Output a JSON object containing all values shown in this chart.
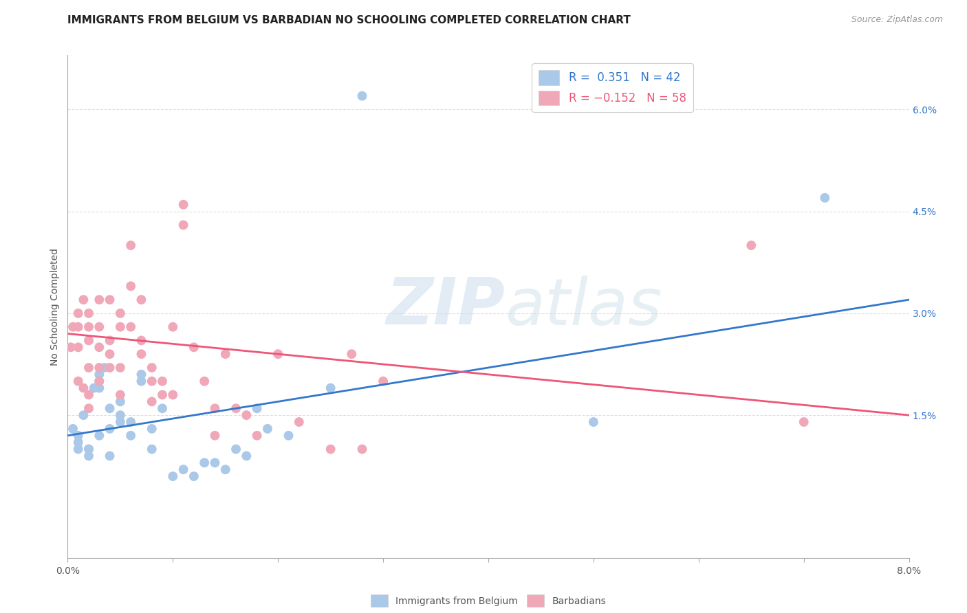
{
  "title": "IMMIGRANTS FROM BELGIUM VS BARBADIAN NO SCHOOLING COMPLETED CORRELATION CHART",
  "source": "Source: ZipAtlas.com",
  "ylabel": "No Schooling Completed",
  "right_yticks": [
    0.015,
    0.03,
    0.045,
    0.06
  ],
  "right_yticklabels": [
    "1.5%",
    "3.0%",
    "4.5%",
    "6.0%"
  ],
  "x_min": 0.0,
  "x_max": 0.08,
  "y_min": -0.006,
  "y_max": 0.068,
  "blue_color": "#aac8e8",
  "pink_color": "#f0a8b8",
  "blue_line_color": "#3377cc",
  "pink_line_color": "#ee5577",
  "legend_blue_label": "R =  0.351   N = 42",
  "legend_pink_label": "R = −0.152   N = 58",
  "bottom_legend_blue": "Immigrants from Belgium",
  "bottom_legend_pink": "Barbadians",
  "watermark_zip": "ZIP",
  "watermark_atlas": "atlas",
  "blue_scatter_x": [
    0.0005,
    0.001,
    0.001,
    0.001,
    0.0015,
    0.002,
    0.002,
    0.002,
    0.0025,
    0.003,
    0.003,
    0.003,
    0.003,
    0.0035,
    0.004,
    0.004,
    0.004,
    0.005,
    0.005,
    0.005,
    0.006,
    0.006,
    0.007,
    0.007,
    0.008,
    0.008,
    0.009,
    0.01,
    0.011,
    0.012,
    0.013,
    0.014,
    0.015,
    0.016,
    0.017,
    0.018,
    0.019,
    0.021,
    0.025,
    0.028,
    0.05,
    0.072
  ],
  "blue_scatter_y": [
    0.013,
    0.011,
    0.012,
    0.01,
    0.015,
    0.01,
    0.009,
    0.01,
    0.019,
    0.012,
    0.021,
    0.019,
    0.02,
    0.022,
    0.013,
    0.016,
    0.009,
    0.015,
    0.014,
    0.017,
    0.014,
    0.012,
    0.021,
    0.02,
    0.013,
    0.01,
    0.016,
    0.006,
    0.007,
    0.006,
    0.008,
    0.008,
    0.007,
    0.01,
    0.009,
    0.016,
    0.013,
    0.012,
    0.019,
    0.062,
    0.014,
    0.047
  ],
  "pink_scatter_x": [
    0.0003,
    0.0005,
    0.001,
    0.001,
    0.001,
    0.001,
    0.0015,
    0.0015,
    0.002,
    0.002,
    0.002,
    0.002,
    0.002,
    0.002,
    0.003,
    0.003,
    0.003,
    0.003,
    0.003,
    0.004,
    0.004,
    0.004,
    0.004,
    0.005,
    0.005,
    0.005,
    0.005,
    0.006,
    0.006,
    0.006,
    0.007,
    0.007,
    0.007,
    0.008,
    0.008,
    0.008,
    0.009,
    0.009,
    0.01,
    0.01,
    0.011,
    0.011,
    0.012,
    0.013,
    0.014,
    0.014,
    0.015,
    0.016,
    0.017,
    0.018,
    0.02,
    0.022,
    0.025,
    0.027,
    0.028,
    0.03,
    0.065,
    0.07
  ],
  "pink_scatter_y": [
    0.025,
    0.028,
    0.03,
    0.025,
    0.02,
    0.028,
    0.032,
    0.019,
    0.026,
    0.022,
    0.028,
    0.03,
    0.018,
    0.016,
    0.028,
    0.032,
    0.022,
    0.025,
    0.02,
    0.026,
    0.024,
    0.022,
    0.032,
    0.028,
    0.022,
    0.03,
    0.018,
    0.04,
    0.034,
    0.028,
    0.024,
    0.032,
    0.026,
    0.02,
    0.017,
    0.022,
    0.02,
    0.018,
    0.028,
    0.018,
    0.046,
    0.043,
    0.025,
    0.02,
    0.012,
    0.016,
    0.024,
    0.016,
    0.015,
    0.012,
    0.024,
    0.014,
    0.01,
    0.024,
    0.01,
    0.02,
    0.04,
    0.014
  ],
  "blue_trend_x": [
    0.0,
    0.08
  ],
  "blue_trend_y": [
    0.012,
    0.032
  ],
  "pink_trend_x": [
    0.0,
    0.08
  ],
  "pink_trend_y": [
    0.027,
    0.015
  ]
}
